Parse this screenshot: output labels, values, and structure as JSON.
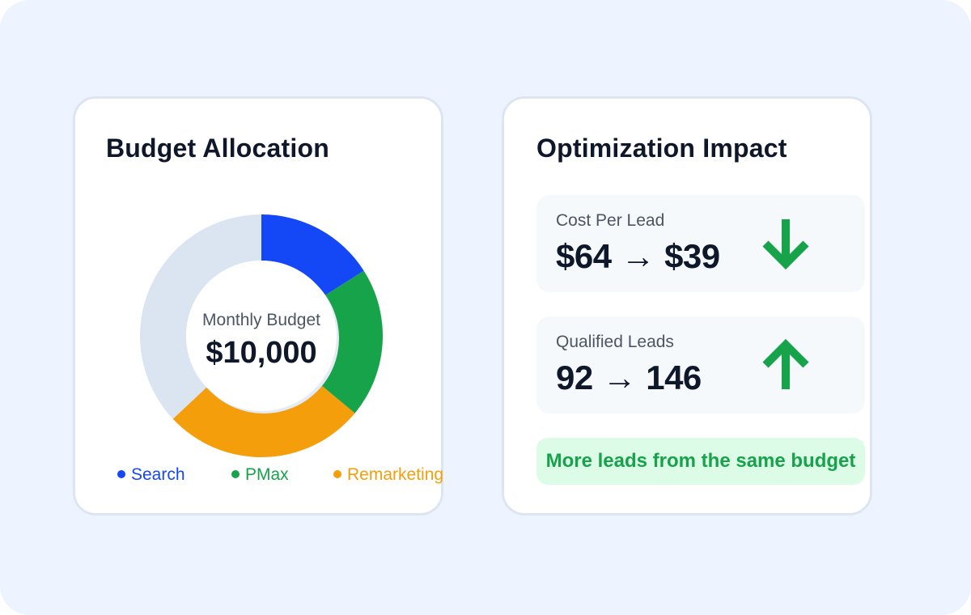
{
  "budget_card": {
    "title": "Budget Allocation",
    "center_label": "Monthly Budget",
    "center_value": "$10,000",
    "legend": [
      {
        "label": "Search",
        "color": "#1447f5"
      },
      {
        "label": "PMax",
        "color": "#16a34a"
      },
      {
        "label": "Remarketing",
        "color": "#f59e0b"
      }
    ]
  },
  "impact_card": {
    "title": "Optimization Impact",
    "metrics": [
      {
        "label": "Cost Per Lead",
        "before": "$64",
        "arrow": "→",
        "after": "$39",
        "trend": "down",
        "trend_icon": "arrow-down-icon"
      },
      {
        "label": "Qualified Leads",
        "before": "92",
        "arrow": "→",
        "after": "146",
        "trend": "up",
        "trend_icon": "arrow-up-icon"
      }
    ],
    "note": "More leads from the same budget"
  },
  "colors": {
    "accent_green": "#16a34a",
    "search_blue": "#1447f5",
    "remarketing_orange": "#f59e0b",
    "unallocated_gray": "#dbe5f1"
  },
  "chart_data": {
    "type": "pie",
    "style": "donut",
    "total": "$10,000",
    "unit": "fraction of monthly budget",
    "slices": [
      {
        "name": "Search",
        "value": 0.16,
        "color": "#1447f5"
      },
      {
        "name": "PMax",
        "value": 0.2,
        "color": "#16a34a"
      },
      {
        "name": "Remarketing",
        "value": 0.27,
        "color": "#f59e0b"
      },
      {
        "name": "",
        "value": 0.37,
        "color": "#dbe5f1"
      }
    ],
    "legend_position": "bottom"
  }
}
